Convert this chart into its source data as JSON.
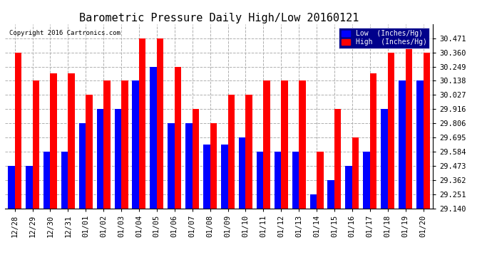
{
  "title": "Barometric Pressure Daily High/Low 20160121",
  "copyright": "Copyright 2016 Cartronics.com",
  "categories": [
    "12/28",
    "12/29",
    "12/30",
    "12/31",
    "01/01",
    "01/02",
    "01/03",
    "01/04",
    "01/05",
    "01/06",
    "01/07",
    "01/08",
    "01/09",
    "01/10",
    "01/11",
    "01/12",
    "01/13",
    "01/14",
    "01/15",
    "01/16",
    "01/17",
    "01/18",
    "01/19",
    "01/20"
  ],
  "low_values": [
    30.36,
    30.138,
    30.138,
    30.138,
    30.027,
    30.138,
    30.027,
    30.249,
    30.249,
    30.138,
    29.916,
    29.806,
    30.027,
    29.916,
    30.027,
    30.027,
    30.138,
    29.584,
    29.916,
    29.695,
    30.195,
    30.36,
    30.36,
    30.138
  ],
  "high_values": [
    30.36,
    30.138,
    30.195,
    30.195,
    30.027,
    30.138,
    30.138,
    30.471,
    30.471,
    30.249,
    29.916,
    29.806,
    30.027,
    30.027,
    30.138,
    30.138,
    30.138,
    29.584,
    29.916,
    29.695,
    30.195,
    30.36,
    30.471,
    30.36
  ],
  "low_blue_values": [
    29.473,
    29.473,
    29.584,
    29.584,
    29.806,
    29.916,
    29.916,
    30.138,
    30.249,
    29.806,
    29.806,
    29.64,
    29.64,
    29.695,
    29.584,
    29.584,
    29.584,
    29.251,
    29.362,
    29.473,
    29.584,
    29.916,
    30.138,
    30.138
  ],
  "high_red_values": [
    30.36,
    30.138,
    30.195,
    30.195,
    30.027,
    30.138,
    30.138,
    30.471,
    30.471,
    30.249,
    29.916,
    29.806,
    30.027,
    30.027,
    30.138,
    30.138,
    30.138,
    29.584,
    29.916,
    29.695,
    30.195,
    30.36,
    30.471,
    30.36
  ],
  "ylim_min": 29.14,
  "ylim_max": 30.582,
  "yticks": [
    29.14,
    29.251,
    29.362,
    29.473,
    29.584,
    29.695,
    29.806,
    29.916,
    30.027,
    30.138,
    30.249,
    30.36,
    30.471
  ],
  "low_color": "#0000ff",
  "high_color": "#ff0000",
  "background_color": "#ffffff",
  "grid_color": "#b0b0b0",
  "title_fontsize": 11,
  "legend_low_label": "Low  (Inches/Hg)",
  "legend_high_label": "High  (Inches/Hg)"
}
